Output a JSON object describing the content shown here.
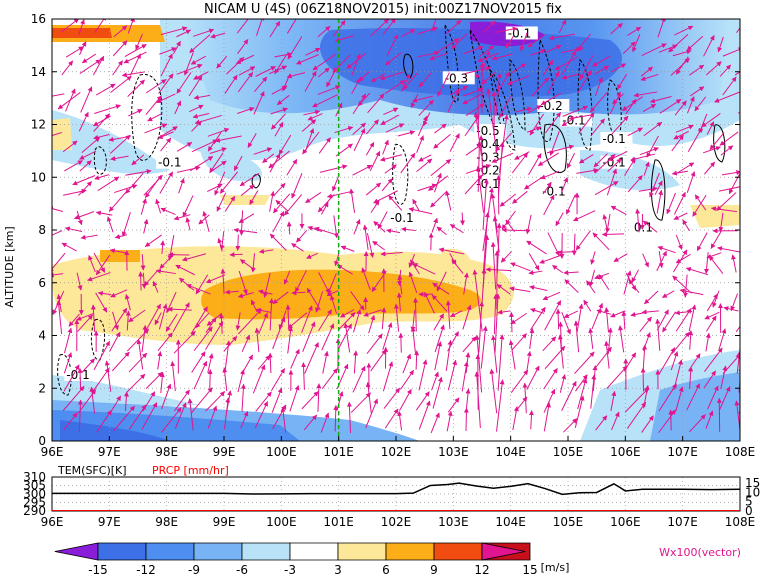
{
  "title": "NICAM U (4S) (06Z18NOV2015) init:00Z17NOV2015 fix",
  "colors": {
    "vector": "#e0158f",
    "marker_line": "#11aa11",
    "contour": "#000000",
    "prcp": "#ff0000"
  },
  "chart_data": [
    {
      "type": "heatmap",
      "title": "NICAM U (4S) (06Z18NOV2015) init:00Z17NOV2015 fix",
      "ylabel": "ALTITUDE [km]",
      "xlim": [
        96,
        108
      ],
      "ylim": [
        0,
        16
      ],
      "grid": true,
      "x_ticks": [
        "96E",
        "97E",
        "98E",
        "99E",
        "100E",
        "101E",
        "102E",
        "103E",
        "104E",
        "105E",
        "106E",
        "107E",
        "108E"
      ],
      "y_ticks": [
        "0",
        "2",
        "4",
        "6",
        "8",
        "10",
        "12",
        "14",
        "16"
      ],
      "marker_longitude": 101,
      "contour_labels": [
        {
          "text": "-0.1",
          "lon": 103.95,
          "alt": 15.3
        },
        {
          "text": "-0.3",
          "lon": 102.85,
          "alt": 13.6
        },
        {
          "text": "-0.2",
          "lon": 104.5,
          "alt": 12.55
        },
        {
          "text": "-0.1",
          "lon": 104.9,
          "alt": 12.0
        },
        {
          "text": "-0.5",
          "lon": 103.4,
          "alt": 11.6
        },
        {
          "text": "-0.4",
          "lon": 103.4,
          "alt": 11.1
        },
        {
          "text": "-0.3",
          "lon": 103.4,
          "alt": 10.6
        },
        {
          "text": "-0.2",
          "lon": 103.4,
          "alt": 10.1
        },
        {
          "text": "-0.1",
          "lon": 103.4,
          "alt": 9.6
        },
        {
          "text": "-0.1",
          "lon": 105.6,
          "alt": 11.3
        },
        {
          "text": "-0.1",
          "lon": 105.6,
          "alt": 10.4
        },
        {
          "text": "-0.1",
          "lon": 104.55,
          "alt": 9.3
        },
        {
          "text": "-0.1",
          "lon": 97.85,
          "alt": 10.4
        },
        {
          "text": "-0.1",
          "lon": 101.9,
          "alt": 8.3
        },
        {
          "text": "0.1",
          "lon": 106.15,
          "alt": 7.95
        },
        {
          "text": "-0.1",
          "lon": 96.25,
          "alt": 2.35
        }
      ],
      "sub_panel": {
        "left_label": "TEM(SFC)[K]",
        "right_label": "PRCP [mm/hr]",
        "left_ticks": [
          "310",
          "305",
          "300",
          "295",
          "290"
        ],
        "right_ticks": [
          "15",
          "10",
          "5",
          "0"
        ],
        "tem_sfc": {
          "x": [
            96,
            96.5,
            97,
            97.5,
            98,
            98.5,
            99,
            99.5,
            100,
            100.5,
            101,
            101.5,
            102,
            102.3,
            102.6,
            102.9,
            103.1,
            103.4,
            103.7,
            104,
            104.3,
            104.6,
            104.9,
            105.2,
            105.5,
            105.8,
            105.9,
            106,
            106.3,
            106.6,
            107,
            107.5,
            108
          ],
          "y": [
            300.4,
            300.4,
            300.4,
            300.4,
            300.4,
            300.4,
            300.4,
            300.0,
            300.1,
            300.2,
            300.2,
            300.2,
            300.2,
            300.5,
            305.0,
            305.6,
            306.4,
            304.7,
            303.4,
            304.5,
            306.1,
            303.2,
            299.8,
            300.7,
            300.9,
            306.0,
            304.0,
            301.8,
            302.8,
            302.8,
            302.8,
            302.6,
            302.8
          ]
        },
        "prcp": {
          "x": [
            96,
            108
          ],
          "y": [
            0,
            0
          ]
        }
      },
      "colorbar": {
        "ticks": [
          "-15",
          "-12",
          "-9",
          "-6",
          "-3",
          "3",
          "6",
          "9",
          "12",
          "15"
        ],
        "unit": "[m/s]",
        "colors": [
          "#8a1ed8",
          "#3d6fe6",
          "#4d8ef0",
          "#77b3f5",
          "#b8e2f8",
          "#ffffff",
          "#fce898",
          "#fcae19",
          "#f14d10",
          "#c8101c",
          "#e0158f"
        ]
      },
      "vector_label": "Wx100(vector)"
    }
  ]
}
